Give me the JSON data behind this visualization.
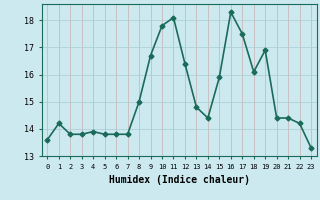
{
  "xlabel": "Humidex (Indice chaleur)",
  "ylabel": "",
  "x": [
    0,
    1,
    2,
    3,
    4,
    5,
    6,
    7,
    8,
    9,
    10,
    11,
    12,
    13,
    14,
    15,
    16,
    17,
    18,
    19,
    20,
    21,
    22,
    23
  ],
  "y": [
    13.6,
    14.2,
    13.8,
    13.8,
    13.9,
    13.8,
    13.8,
    13.8,
    15.0,
    16.7,
    17.8,
    18.1,
    16.4,
    14.8,
    14.4,
    15.9,
    18.3,
    17.5,
    16.1,
    16.9,
    14.4,
    14.4,
    14.2,
    13.3
  ],
  "line_color": "#1a6b5a",
  "bg_color": "#cde9f0",
  "grid_color_v": "#c8b0b0",
  "grid_color_h": "#a8ccd4",
  "ylim": [
    13.0,
    18.6
  ],
  "yticks": [
    13,
    14,
    15,
    16,
    17,
    18
  ],
  "marker": "D",
  "marker_size": 2.5,
  "line_width": 1.2
}
